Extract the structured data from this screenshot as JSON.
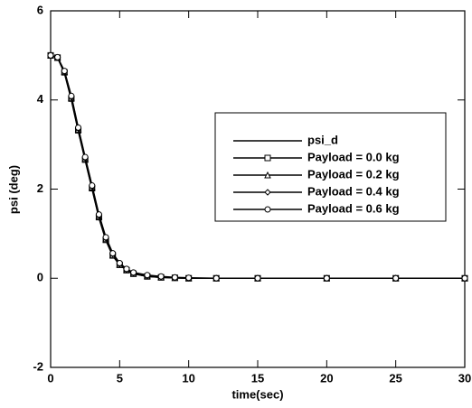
{
  "chart_data": {
    "type": "line",
    "xlabel": "time(sec)",
    "ylabel": "psi (deg)",
    "x": [
      0,
      0.5,
      1,
      1.5,
      2,
      2.5,
      3,
      3.5,
      4,
      4.5,
      5,
      5.5,
      6,
      7,
      8,
      9,
      10,
      12,
      15,
      20,
      25,
      30
    ],
    "series": [
      {
        "name": "psi_d",
        "color": "#000000",
        "marker": "none",
        "values": [
          5,
          4.95,
          4.6,
          4.0,
          3.3,
          2.65,
          2.0,
          1.35,
          0.85,
          0.5,
          0.3,
          0.18,
          0.1,
          0.04,
          0.02,
          0.01,
          0,
          0,
          0,
          0,
          0,
          0
        ]
      },
      {
        "name": "Payload = 0.0 kg",
        "color": "#000000",
        "marker": "square",
        "values": [
          5,
          4.95,
          4.62,
          4.03,
          3.32,
          2.66,
          2.02,
          1.37,
          0.86,
          0.51,
          0.3,
          0.18,
          0.1,
          0.04,
          0.02,
          0.01,
          0,
          0,
          0,
          0,
          0,
          0
        ]
      },
      {
        "name": "Payload = 0.2 kg",
        "color": "#000000",
        "marker": "triangle",
        "values": [
          5,
          4.95,
          4.63,
          4.05,
          3.34,
          2.68,
          2.04,
          1.39,
          0.88,
          0.52,
          0.31,
          0.19,
          0.11,
          0.05,
          0.02,
          0.01,
          0,
          0,
          0,
          0,
          0,
          0
        ]
      },
      {
        "name": "Payload = 0.4 kg",
        "color": "#000000",
        "marker": "diamond",
        "values": [
          5,
          4.95,
          4.64,
          4.07,
          3.36,
          2.7,
          2.06,
          1.41,
          0.9,
          0.54,
          0.32,
          0.2,
          0.12,
          0.06,
          0.03,
          0.01,
          0,
          0,
          0,
          0,
          0,
          0
        ]
      },
      {
        "name": "Payload = 0.6 kg",
        "color": "#000000",
        "marker": "circle",
        "values": [
          5,
          4.96,
          4.65,
          4.09,
          3.38,
          2.72,
          2.08,
          1.43,
          0.92,
          0.56,
          0.34,
          0.21,
          0.13,
          0.07,
          0.04,
          0.02,
          0.01,
          0,
          0,
          0,
          0,
          0
        ]
      }
    ],
    "xlim": [
      0,
      30
    ],
    "xticks": [
      0,
      5,
      10,
      15,
      20,
      25,
      30
    ],
    "ylim": [
      -2,
      6
    ],
    "yticks": [
      -2,
      0,
      2,
      4,
      6
    ]
  }
}
